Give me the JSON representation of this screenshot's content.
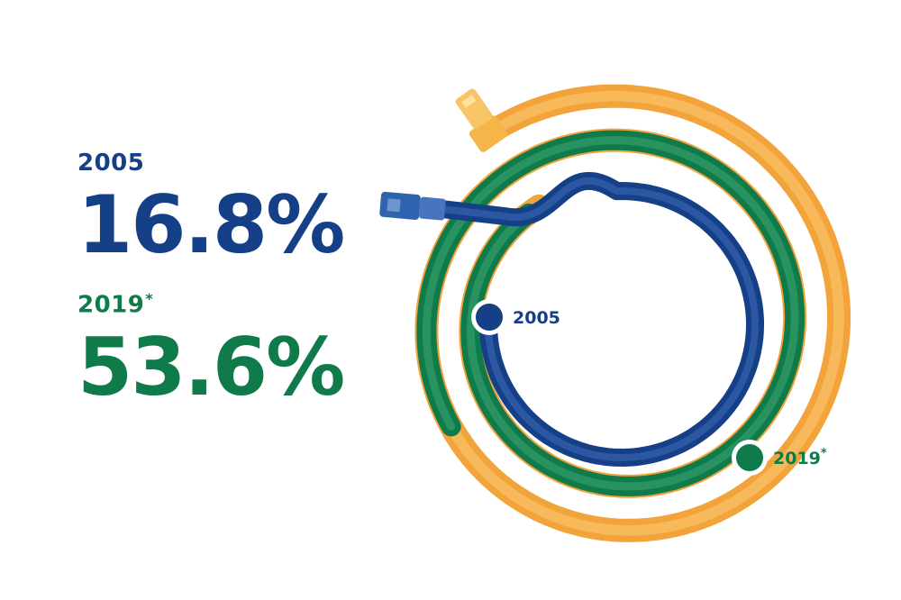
{
  "chart_data": {
    "type": "area",
    "series": [
      {
        "name": "2005",
        "label": "2005",
        "value": 16.8,
        "value_text": "16.8%",
        "color": "#153f86"
      },
      {
        "name": "2019",
        "label": "2019",
        "footnote_mark": "*",
        "value": 53.6,
        "value_text": "53.6%",
        "color": "#0f7a4a"
      }
    ],
    "cable_color": "#f2a33a",
    "cable_highlight": "#f8c064",
    "background": "#ffffff"
  }
}
